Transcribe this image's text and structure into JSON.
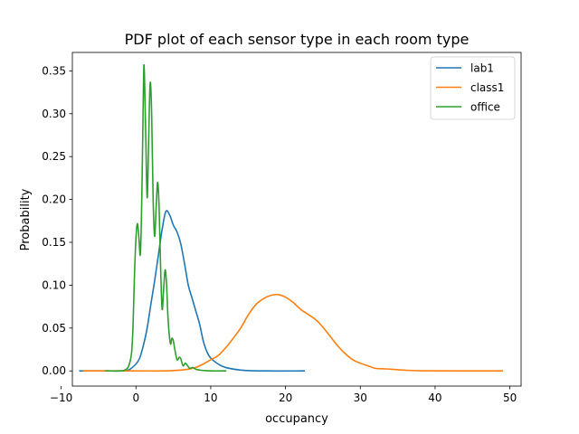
{
  "chart_data": {
    "type": "line",
    "title": "PDF plot of each sensor type in each room type",
    "xlabel": "occupancy",
    "ylabel": "Probability",
    "xlim": [
      -8.5,
      51.5
    ],
    "ylim": [
      -0.0177,
      0.3715
    ],
    "xticks": [
      -10,
      0,
      10,
      20,
      30,
      40,
      50
    ],
    "yticks": [
      0.0,
      0.05,
      0.1,
      0.15,
      0.2,
      0.25,
      0.3,
      0.35
    ],
    "xtick_labels": [
      "−10",
      "0",
      "10",
      "20",
      "30",
      "40",
      "50"
    ],
    "ytick_labels": [
      "0.00",
      "0.05",
      "0.10",
      "0.15",
      "0.20",
      "0.25",
      "0.30",
      "0.35"
    ],
    "grid": false,
    "legend_position": "top-right",
    "series": [
      {
        "name": "lab1",
        "color": "#1f77b4",
        "points": [
          [
            -7.5,
            0.0
          ],
          [
            -4.0,
            0.0
          ],
          [
            -2.0,
            0.0
          ],
          [
            -1.0,
            0.001
          ],
          [
            0.0,
            0.008
          ],
          [
            0.5,
            0.015
          ],
          [
            1.0,
            0.03
          ],
          [
            1.5,
            0.05
          ],
          [
            2.0,
            0.078
          ],
          [
            2.5,
            0.105
          ],
          [
            3.0,
            0.135
          ],
          [
            3.5,
            0.165
          ],
          [
            4.0,
            0.186
          ],
          [
            4.5,
            0.182
          ],
          [
            5.0,
            0.17
          ],
          [
            5.5,
            0.162
          ],
          [
            6.0,
            0.148
          ],
          [
            6.5,
            0.125
          ],
          [
            7.0,
            0.1
          ],
          [
            7.5,
            0.085
          ],
          [
            8.0,
            0.07
          ],
          [
            8.5,
            0.055
          ],
          [
            9.0,
            0.035
          ],
          [
            9.5,
            0.022
          ],
          [
            10.0,
            0.015
          ],
          [
            11.0,
            0.008
          ],
          [
            12.0,
            0.004
          ],
          [
            14.0,
            0.001
          ],
          [
            17.0,
            0.0
          ],
          [
            22.5,
            0.0
          ]
        ]
      },
      {
        "name": "class1",
        "color": "#ff7f0e",
        "points": [
          [
            -7.0,
            0.0
          ],
          [
            -5.0,
            0.0
          ],
          [
            0.0,
            0.0
          ],
          [
            4.0,
            0.0
          ],
          [
            6.0,
            0.001
          ],
          [
            7.0,
            0.002
          ],
          [
            8.0,
            0.004
          ],
          [
            9.0,
            0.008
          ],
          [
            10.0,
            0.013
          ],
          [
            11.0,
            0.018
          ],
          [
            12.0,
            0.027
          ],
          [
            13.0,
            0.038
          ],
          [
            14.0,
            0.05
          ],
          [
            15.0,
            0.065
          ],
          [
            16.0,
            0.077
          ],
          [
            17.0,
            0.084
          ],
          [
            18.0,
            0.088
          ],
          [
            19.0,
            0.089
          ],
          [
            20.0,
            0.086
          ],
          [
            21.0,
            0.08
          ],
          [
            22.0,
            0.072
          ],
          [
            23.0,
            0.066
          ],
          [
            24.0,
            0.06
          ],
          [
            25.0,
            0.051
          ],
          [
            26.0,
            0.04
          ],
          [
            27.0,
            0.029
          ],
          [
            28.0,
            0.02
          ],
          [
            29.0,
            0.013
          ],
          [
            30.0,
            0.009
          ],
          [
            31.0,
            0.006
          ],
          [
            32.0,
            0.003
          ],
          [
            33.0,
            0.0025
          ],
          [
            34.0,
            0.002
          ],
          [
            36.0,
            0.0008
          ],
          [
            38.0,
            0.0002
          ],
          [
            42.0,
            0.0
          ],
          [
            49.0,
            0.0
          ]
        ]
      },
      {
        "name": "office",
        "color": "#2ca02c",
        "points": [
          [
            -4.0,
            0.0
          ],
          [
            -2.0,
            0.0
          ],
          [
            -1.5,
            0.001
          ],
          [
            -1.0,
            0.005
          ],
          [
            -0.6,
            0.02
          ],
          [
            -0.4,
            0.05
          ],
          [
            -0.2,
            0.11
          ],
          [
            0.0,
            0.155
          ],
          [
            0.2,
            0.172
          ],
          [
            0.4,
            0.155
          ],
          [
            0.6,
            0.137
          ],
          [
            0.8,
            0.21
          ],
          [
            1.0,
            0.33
          ],
          [
            1.1,
            0.354
          ],
          [
            1.3,
            0.28
          ],
          [
            1.5,
            0.202
          ],
          [
            1.7,
            0.27
          ],
          [
            1.9,
            0.336
          ],
          [
            2.1,
            0.3
          ],
          [
            2.3,
            0.2
          ],
          [
            2.5,
            0.157
          ],
          [
            2.7,
            0.19
          ],
          [
            2.9,
            0.22
          ],
          [
            3.1,
            0.19
          ],
          [
            3.3,
            0.12
          ],
          [
            3.5,
            0.072
          ],
          [
            3.7,
            0.095
          ],
          [
            3.9,
            0.118
          ],
          [
            4.1,
            0.1
          ],
          [
            4.3,
            0.06
          ],
          [
            4.6,
            0.032
          ],
          [
            4.8,
            0.038
          ],
          [
            5.0,
            0.035
          ],
          [
            5.2,
            0.025
          ],
          [
            5.5,
            0.013
          ],
          [
            5.8,
            0.016
          ],
          [
            6.0,
            0.014
          ],
          [
            6.3,
            0.006
          ],
          [
            6.6,
            0.009
          ],
          [
            6.9,
            0.006
          ],
          [
            7.2,
            0.003
          ],
          [
            7.6,
            0.004
          ],
          [
            8.0,
            0.002
          ],
          [
            8.5,
            0.001
          ],
          [
            9.0,
            0.0005
          ],
          [
            10.0,
            0.0
          ],
          [
            12.0,
            0.0
          ]
        ]
      }
    ]
  }
}
